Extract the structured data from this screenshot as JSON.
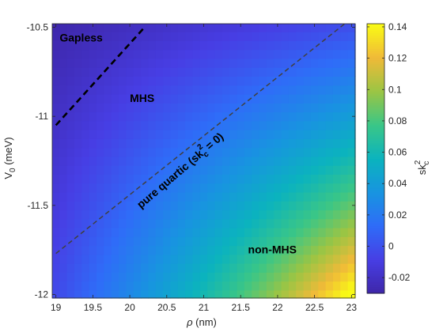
{
  "chart_data": {
    "type": "heatmap",
    "title": "",
    "xlabel": {
      "symbol": "ρ",
      "unit": " (nm)"
    },
    "ylabel": {
      "base": "V",
      "sub": "0",
      "unit": " (meV)"
    },
    "xlim": [
      18.95,
      23.05
    ],
    "ylim": [
      -12.02,
      -10.48
    ],
    "xticks": [
      19,
      19.5,
      20,
      20.5,
      21,
      21.5,
      22,
      22.5,
      23
    ],
    "xtick_labels": [
      "19",
      "19.5",
      "20",
      "20.5",
      "21",
      "21.5",
      "22",
      "22.5",
      "23"
    ],
    "yticks": [
      -10.5,
      -11,
      -11.5,
      -12
    ],
    "ytick_labels": [
      "-10.5",
      "-11",
      "-11.5",
      "-12"
    ],
    "colorbar": {
      "label": {
        "base": "sk",
        "sup": "2",
        "sub": "c"
      },
      "clim": [
        -0.03,
        0.142
      ],
      "ticks": [
        0.14,
        0.12,
        0.1,
        0.08,
        0.06,
        0.04,
        0.02,
        0,
        -0.02
      ],
      "tick_labels": [
        "0.14",
        "0.12",
        "0.1",
        "0.08",
        "0.06",
        "0.04",
        "0.02",
        "0",
        "-0.02"
      ],
      "colormap": "parula"
    },
    "surface": {
      "description_of_values": "sk_c^2 values on grid, approx. linear in (rho, V0) with quadratic growth toward large rho and low V0",
      "x_range": [
        19,
        23
      ],
      "y_range": [
        -12,
        -10.5
      ],
      "nx": 41,
      "ny": 31,
      "corner_values": {
        "x19_y-10.5": -0.028,
        "x23_y-10.5": 0.0,
        "x19_y-12": -0.003,
        "x23_y-12": 0.14
      }
    },
    "lines": [
      {
        "name": "gapless-boundary",
        "style": "thick-dashed",
        "color": "#000000",
        "x": [
          19,
          20.2
        ],
        "y": [
          -11.05,
          -10.5
        ]
      },
      {
        "name": "pure-quartic",
        "style": "thin-dashed",
        "color": "#404040",
        "x": [
          19,
          23
        ],
        "y": [
          -11.77,
          -10.45
        ]
      }
    ],
    "annotations": [
      {
        "text": "Gapless",
        "x": 19.05,
        "y": -10.58
      },
      {
        "text": "MHS",
        "x": 20,
        "y": -10.92
      },
      {
        "text": "non-MHS",
        "x": 21.6,
        "y": -11.77
      }
    ],
    "quartic_label": {
      "prefix": "pure quartic (sk",
      "sup": "2",
      "sub": "c",
      "suffix": " = 0)",
      "x": 20.15,
      "y": -11.52,
      "angle": -40.5
    }
  }
}
